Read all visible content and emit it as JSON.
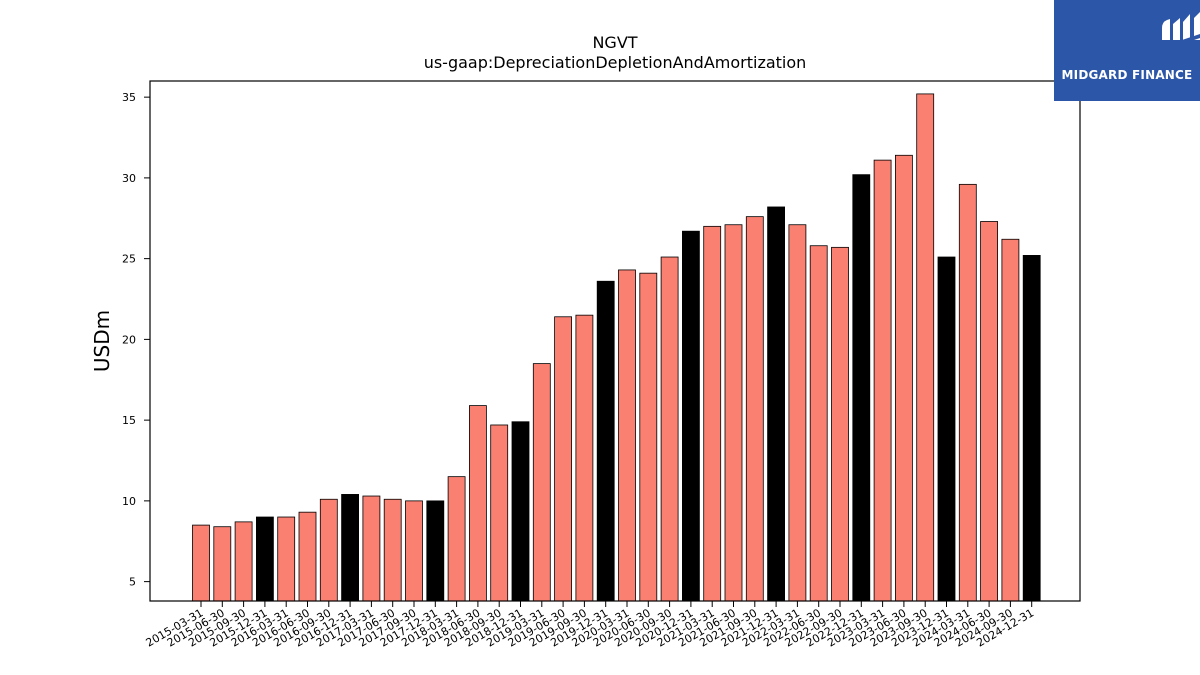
{
  "chart_data": {
    "type": "bar",
    "title": "NGVT",
    "subtitle": "us-gaap:DepreciationDepletionAndAmortization",
    "xlabel": "",
    "ylabel": "USDm",
    "ylim": [
      3.8,
      36
    ],
    "yticks": [
      5,
      10,
      15,
      20,
      25,
      30,
      35
    ],
    "grid": false,
    "categories": [
      "2015-03-31",
      "2015-06-30",
      "2015-09-30",
      "2015-12-31",
      "2016-03-31",
      "2016-06-30",
      "2016-09-30",
      "2016-12-31",
      "2017-03-31",
      "2017-06-30",
      "2017-09-30",
      "2017-12-31",
      "2018-03-31",
      "2018-06-30",
      "2018-09-30",
      "2018-12-31",
      "2019-03-31",
      "2019-06-30",
      "2019-09-30",
      "2019-12-31",
      "2020-03-31",
      "2020-06-30",
      "2020-09-30",
      "2020-12-31",
      "2021-03-31",
      "2021-06-30",
      "2021-09-30",
      "2021-12-31",
      "2022-03-31",
      "2022-06-30",
      "2022-09-30",
      "2022-12-31",
      "2023-03-31",
      "2023-06-30",
      "2023-09-30",
      "2023-12-31",
      "2024-03-31",
      "2024-06-30",
      "2024-09-30",
      "2024-12-31"
    ],
    "values": [
      8.5,
      8.4,
      8.7,
      9.0,
      9.0,
      9.3,
      10.1,
      10.4,
      10.3,
      10.1,
      10.0,
      10.0,
      11.5,
      15.9,
      14.7,
      14.9,
      18.5,
      21.4,
      21.5,
      23.6,
      24.3,
      24.1,
      25.1,
      26.7,
      27.0,
      27.1,
      27.6,
      28.2,
      27.1,
      25.8,
      25.7,
      30.2,
      31.1,
      31.4,
      35.2,
      25.1,
      29.6,
      27.3,
      26.2,
      25.2
    ],
    "colors": {
      "quarter": "#fa8072",
      "year_end": "#000000",
      "edge": "#000000"
    }
  },
  "logo": {
    "text": "MIDGARD FINANCE",
    "background": "#2c56a8"
  }
}
